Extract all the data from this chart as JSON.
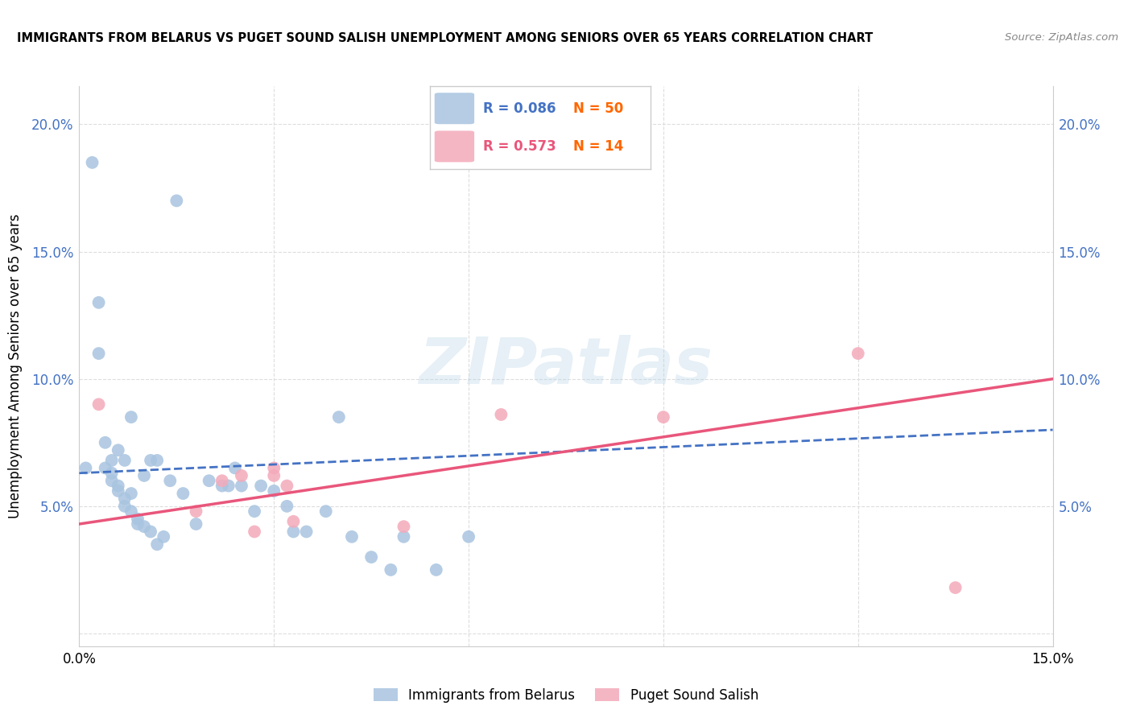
{
  "title": "IMMIGRANTS FROM BELARUS VS PUGET SOUND SALISH UNEMPLOYMENT AMONG SENIORS OVER 65 YEARS CORRELATION CHART",
  "source": "Source: ZipAtlas.com",
  "ylabel": "Unemployment Among Seniors over 65 years",
  "xlim": [
    0,
    0.15
  ],
  "ylim": [
    -0.005,
    0.215
  ],
  "xticks": [
    0.0,
    0.03,
    0.06,
    0.09,
    0.12,
    0.15
  ],
  "xtick_labels": [
    "0.0%",
    "",
    "",
    "",
    "",
    "15.0%"
  ],
  "yticks": [
    0.0,
    0.05,
    0.1,
    0.15,
    0.2
  ],
  "ytick_labels": [
    "",
    "5.0%",
    "10.0%",
    "15.0%",
    "20.0%"
  ],
  "blue_color": "#A8C4E0",
  "pink_color": "#F4AABA",
  "blue_line_color": "#4472C4",
  "pink_line_color": "#E9567B",
  "tick_color": "#4472C4",
  "legend_R_blue": "0.086",
  "legend_N_blue": "50",
  "legend_R_pink": "0.573",
  "legend_N_pink": "14",
  "n_color": "#FF6600",
  "watermark_text": "ZIPatlas",
  "blue_scatter_x": [
    0.001,
    0.002,
    0.003,
    0.003,
    0.004,
    0.004,
    0.005,
    0.005,
    0.005,
    0.006,
    0.006,
    0.006,
    0.007,
    0.007,
    0.007,
    0.008,
    0.008,
    0.008,
    0.009,
    0.009,
    0.01,
    0.01,
    0.011,
    0.011,
    0.012,
    0.012,
    0.013,
    0.014,
    0.015,
    0.016,
    0.018,
    0.02,
    0.022,
    0.023,
    0.024,
    0.025,
    0.027,
    0.028,
    0.03,
    0.032,
    0.033,
    0.035,
    0.038,
    0.04,
    0.042,
    0.045,
    0.048,
    0.05,
    0.055,
    0.06
  ],
  "blue_scatter_y": [
    0.065,
    0.185,
    0.13,
    0.11,
    0.075,
    0.065,
    0.068,
    0.063,
    0.06,
    0.058,
    0.056,
    0.072,
    0.053,
    0.05,
    0.068,
    0.055,
    0.048,
    0.085,
    0.045,
    0.043,
    0.042,
    0.062,
    0.04,
    0.068,
    0.035,
    0.068,
    0.038,
    0.06,
    0.17,
    0.055,
    0.043,
    0.06,
    0.058,
    0.058,
    0.065,
    0.058,
    0.048,
    0.058,
    0.056,
    0.05,
    0.04,
    0.04,
    0.048,
    0.085,
    0.038,
    0.03,
    0.025,
    0.038,
    0.025,
    0.038
  ],
  "pink_scatter_x": [
    0.003,
    0.018,
    0.022,
    0.025,
    0.027,
    0.03,
    0.03,
    0.032,
    0.033,
    0.05,
    0.065,
    0.09,
    0.12,
    0.135
  ],
  "pink_scatter_y": [
    0.09,
    0.048,
    0.06,
    0.062,
    0.04,
    0.065,
    0.062,
    0.058,
    0.044,
    0.042,
    0.086,
    0.085,
    0.11,
    0.018
  ],
  "blue_trend_x": [
    0.0,
    0.15
  ],
  "blue_trend_y": [
    0.063,
    0.08
  ],
  "pink_trend_x": [
    0.0,
    0.15
  ],
  "pink_trend_y": [
    0.043,
    0.1
  ],
  "background_color": "#FFFFFF",
  "grid_color": "#DDDDDD"
}
